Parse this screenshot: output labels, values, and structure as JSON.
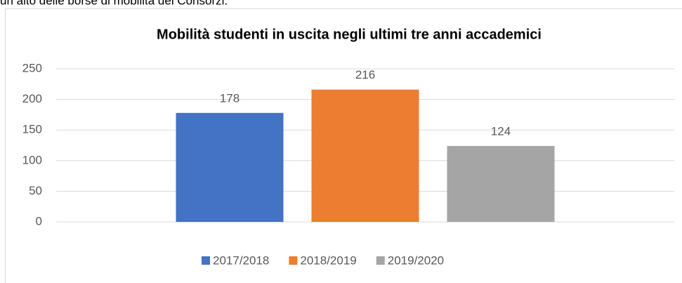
{
  "text_above": "un alto delle borse di mobilità dei Consorzi.",
  "chart_data": {
    "type": "bar",
    "title": "Mobilità studenti in uscita negli ultimi tre anni accademici",
    "categories": [
      null
    ],
    "series": [
      {
        "name": "2017/2018",
        "color": "#4472c4",
        "values": [
          178
        ]
      },
      {
        "name": "2018/2019",
        "color": "#ed7d31",
        "values": [
          216
        ]
      },
      {
        "name": "2019/2020",
        "color": "#a5a5a5",
        "values": [
          124
        ]
      }
    ],
    "ylim": [
      0,
      250
    ],
    "yticks": [
      0,
      50,
      100,
      150,
      200,
      250
    ],
    "grid": true,
    "legend": "bottom"
  }
}
